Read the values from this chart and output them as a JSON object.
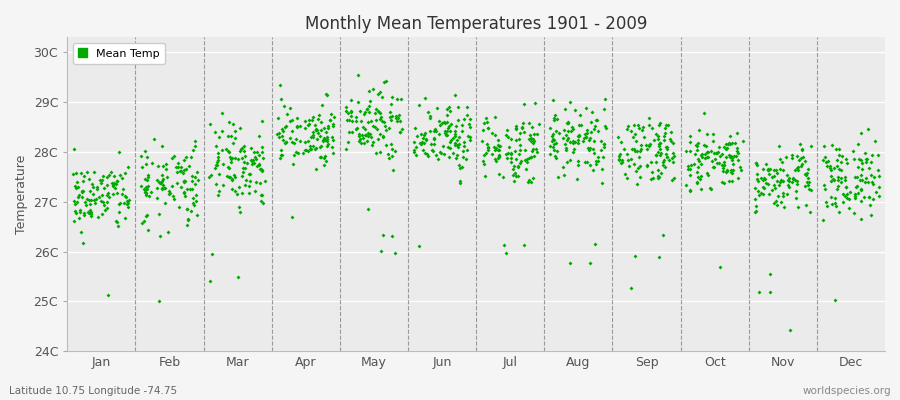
{
  "title": "Monthly Mean Temperatures 1901 - 2009",
  "ylabel": "Temperature",
  "marker_color": "#00aa00",
  "marker_size": 4,
  "background_color": "#f5f5f5",
  "plot_bg_color": "#ebebeb",
  "ylim": [
    24,
    30.3
  ],
  "yticks": [
    24,
    25,
    26,
    27,
    28,
    29,
    30
  ],
  "ytick_labels": [
    "24C",
    "25C",
    "26C",
    "27C",
    "28C",
    "29C",
    "30C"
  ],
  "months": [
    "Jan",
    "Feb",
    "Mar",
    "Apr",
    "May",
    "Jun",
    "Jul",
    "Aug",
    "Sep",
    "Oct",
    "Nov",
    "Dec"
  ],
  "subtitle_left": "Latitude 10.75 Longitude -74.75",
  "subtitle_right": "worldspecies.org",
  "legend_label": "Mean Temp",
  "num_years": 109,
  "seed": 42,
  "month_means": [
    27.1,
    27.3,
    27.8,
    28.3,
    28.6,
    28.3,
    28.1,
    28.3,
    28.0,
    27.8,
    27.5,
    27.4
  ],
  "month_stds": [
    0.35,
    0.4,
    0.38,
    0.35,
    0.38,
    0.32,
    0.32,
    0.35,
    0.32,
    0.32,
    0.32,
    0.38
  ],
  "outlier_prob": 0.025,
  "outlier_drop": 2.2
}
